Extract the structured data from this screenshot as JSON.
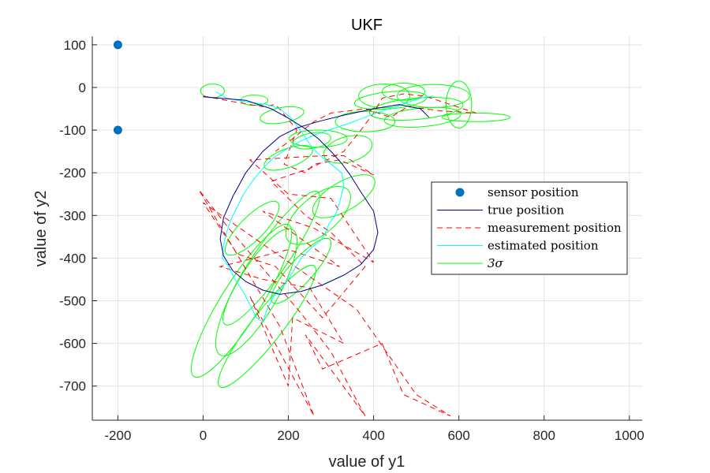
{
  "chart_data": {
    "type": "line",
    "title": "UKF",
    "xlabel": "value of y1",
    "ylabel": "value of y2",
    "xlim": [
      -260,
      1030
    ],
    "ylim": [
      -780,
      120
    ],
    "xticks": [
      -200,
      0,
      200,
      400,
      600,
      800,
      1000
    ],
    "yticks": [
      100,
      0,
      -100,
      -200,
      -300,
      -400,
      -500,
      -600,
      -700
    ],
    "xtick_labels": [
      "-200",
      "0",
      "200",
      "400",
      "600",
      "800",
      "1000"
    ],
    "ytick_labels": [
      "100",
      "0",
      "-100",
      "-200",
      "-300",
      "-400",
      "-500",
      "-600",
      "-700"
    ],
    "grid": true,
    "legend_position": "right",
    "colors": {
      "sensor": "#0072BD",
      "true": "#00008B",
      "measurement": "#FF0000",
      "estimated": "#00FFFF",
      "sigma": "#00FF00"
    },
    "legend": [
      {
        "key": "sensor",
        "label": "sensor position"
      },
      {
        "key": "true",
        "label": "true position"
      },
      {
        "key": "measurement",
        "label": "measurement position"
      },
      {
        "key": "estimated",
        "label": "estimated position"
      },
      {
        "key": "sigma",
        "label": "3σ"
      }
    ],
    "series": [
      {
        "key": "sensor",
        "name": "sensor position",
        "points": [
          [
            -200,
            100
          ],
          [
            -200,
            -100
          ]
        ]
      },
      {
        "key": "true",
        "name": "true position",
        "points": [
          [
            0,
            -22
          ],
          [
            100,
            -30
          ],
          [
            160,
            -50
          ],
          [
            200,
            -72
          ],
          [
            240,
            -97
          ],
          [
            270,
            -120
          ],
          [
            300,
            -150
          ],
          [
            325,
            -178
          ],
          [
            345,
            -205
          ],
          [
            370,
            -245
          ],
          [
            400,
            -290
          ],
          [
            410,
            -340
          ],
          [
            400,
            -380
          ],
          [
            370,
            -415
          ],
          [
            330,
            -440
          ],
          [
            280,
            -463
          ],
          [
            230,
            -478
          ],
          [
            180,
            -485
          ],
          [
            140,
            -475
          ],
          [
            100,
            -455
          ],
          [
            70,
            -430
          ],
          [
            48,
            -395
          ],
          [
            40,
            -355
          ],
          [
            48,
            -305
          ],
          [
            70,
            -255
          ],
          [
            100,
            -200
          ],
          [
            140,
            -150
          ],
          [
            180,
            -115
          ],
          [
            220,
            -95
          ],
          [
            270,
            -80
          ],
          [
            330,
            -65
          ],
          [
            400,
            -50
          ],
          [
            460,
            -40
          ],
          [
            510,
            -50
          ],
          [
            530,
            -70
          ]
        ]
      },
      {
        "key": "estimated",
        "name": "estimated position",
        "points": [
          [
            30,
            -10
          ],
          [
            55,
            -25
          ],
          [
            80,
            -30
          ],
          [
            110,
            -35
          ],
          [
            150,
            -40
          ],
          [
            180,
            -50
          ],
          [
            205,
            -70
          ],
          [
            220,
            -90
          ],
          [
            235,
            -110
          ],
          [
            255,
            -140
          ],
          [
            275,
            -160
          ],
          [
            300,
            -180
          ],
          [
            325,
            -200
          ],
          [
            330,
            -230
          ],
          [
            320,
            -270
          ],
          [
            310,
            -300
          ],
          [
            295,
            -320
          ],
          [
            285,
            -345
          ],
          [
            275,
            -360
          ],
          [
            255,
            -375
          ],
          [
            230,
            -400
          ],
          [
            215,
            -425
          ],
          [
            200,
            -450
          ],
          [
            185,
            -470
          ],
          [
            165,
            -490
          ],
          [
            150,
            -520
          ],
          [
            140,
            -550
          ],
          [
            125,
            -540
          ],
          [
            110,
            -510
          ],
          [
            95,
            -480
          ],
          [
            75,
            -450
          ],
          [
            60,
            -420
          ],
          [
            45,
            -400
          ],
          [
            48,
            -370
          ],
          [
            55,
            -340
          ],
          [
            65,
            -310
          ],
          [
            80,
            -280
          ],
          [
            95,
            -250
          ],
          [
            115,
            -220
          ],
          [
            140,
            -190
          ],
          [
            165,
            -165
          ],
          [
            195,
            -145
          ],
          [
            230,
            -125
          ],
          [
            265,
            -110
          ],
          [
            300,
            -98
          ],
          [
            340,
            -85
          ],
          [
            380,
            -70
          ],
          [
            420,
            -55
          ],
          [
            450,
            -45
          ],
          [
            480,
            -35
          ],
          [
            510,
            -25
          ],
          [
            540,
            -20
          ]
        ]
      },
      {
        "key": "measurement",
        "name": "measurement position",
        "points": [
          [
            0,
            -20
          ],
          [
            80,
            -35
          ],
          [
            140,
            -45
          ],
          [
            170,
            -40
          ],
          [
            200,
            -75
          ],
          [
            220,
            -100
          ],
          [
            190,
            -180
          ],
          [
            240,
            -200
          ],
          [
            260,
            -180
          ],
          [
            320,
            -170
          ],
          [
            400,
            -205
          ],
          [
            330,
            -160
          ],
          [
            280,
            -160
          ],
          [
            110,
            -170
          ],
          [
            200,
            -250
          ],
          [
            300,
            -260
          ],
          [
            400,
            -410
          ],
          [
            260,
            -330
          ],
          [
            140,
            -290
          ],
          [
            320,
            -420
          ],
          [
            200,
            -380
          ],
          [
            40,
            -420
          ],
          [
            140,
            -450
          ],
          [
            250,
            -470
          ],
          [
            330,
            -600
          ],
          [
            210,
            -540
          ],
          [
            200,
            -700
          ],
          [
            110,
            -490
          ],
          [
            260,
            -770
          ],
          [
            180,
            -560
          ],
          [
            -10,
            -240
          ],
          [
            60,
            -330
          ],
          [
            120,
            -400
          ],
          [
            230,
            -530
          ],
          [
            300,
            -620
          ],
          [
            380,
            -770
          ],
          [
            240,
            -580
          ],
          [
            280,
            -660
          ],
          [
            420,
            -600
          ],
          [
            470,
            -720
          ],
          [
            580,
            -770
          ],
          [
            500,
            -720
          ],
          [
            360,
            -520
          ],
          [
            0,
            -270
          ],
          [
            80,
            -390
          ],
          [
            170,
            -420
          ],
          [
            280,
            -540
          ],
          [
            380,
            -420
          ],
          [
            300,
            -340
          ],
          [
            240,
            -300
          ],
          [
            160,
            -220
          ],
          [
            250,
            -190
          ],
          [
            330,
            -150
          ],
          [
            370,
            -100
          ],
          [
            400,
            -60
          ],
          [
            420,
            -25
          ],
          [
            470,
            -15
          ],
          [
            520,
            -20
          ],
          [
            580,
            -40
          ],
          [
            640,
            -60
          ],
          [
            560,
            -55
          ],
          [
            480,
            -45
          ],
          [
            440,
            -70
          ],
          [
            380,
            -50
          ],
          [
            300,
            -60
          ],
          [
            260,
            -80
          ],
          [
            210,
            -120
          ],
          [
            170,
            -150
          ]
        ]
      }
    ],
    "sigma_ellipses": [
      [
        22,
        -8,
        28,
        16,
        0
      ],
      [
        120,
        -30,
        32,
        12,
        0
      ],
      [
        185,
        -65,
        52,
        18,
        -10
      ],
      [
        270,
        -120,
        68,
        20,
        0
      ],
      [
        340,
        -145,
        58,
        30,
        -15
      ],
      [
        200,
        -165,
        60,
        22,
        -20
      ],
      [
        255,
        -125,
        45,
        18,
        -10
      ],
      [
        330,
        -255,
        82,
        34,
        -30
      ],
      [
        270,
        -300,
        92,
        44,
        -40
      ],
      [
        160,
        -400,
        190,
        38,
        -55
      ],
      [
        125,
        -480,
        170,
        50,
        -60
      ],
      [
        90,
        -500,
        210,
        46,
        -58
      ],
      [
        150,
        -560,
        180,
        36,
        -52
      ],
      [
        115,
        -330,
        85,
        28,
        -45
      ],
      [
        230,
        -430,
        100,
        28,
        -48
      ],
      [
        540,
        -20,
        85,
        27,
        0
      ],
      [
        500,
        -50,
        110,
        25,
        -5
      ],
      [
        440,
        -30,
        85,
        20,
        -5
      ],
      [
        600,
        -40,
        30,
        55,
        0
      ],
      [
        380,
        -80,
        70,
        24,
        0
      ],
      [
        425,
        -20,
        60,
        28,
        0
      ],
      [
        470,
        -10,
        50,
        20,
        0
      ],
      [
        515,
        -70,
        90,
        22,
        -5
      ],
      [
        640,
        -70,
        80,
        10,
        0
      ]
    ]
  }
}
